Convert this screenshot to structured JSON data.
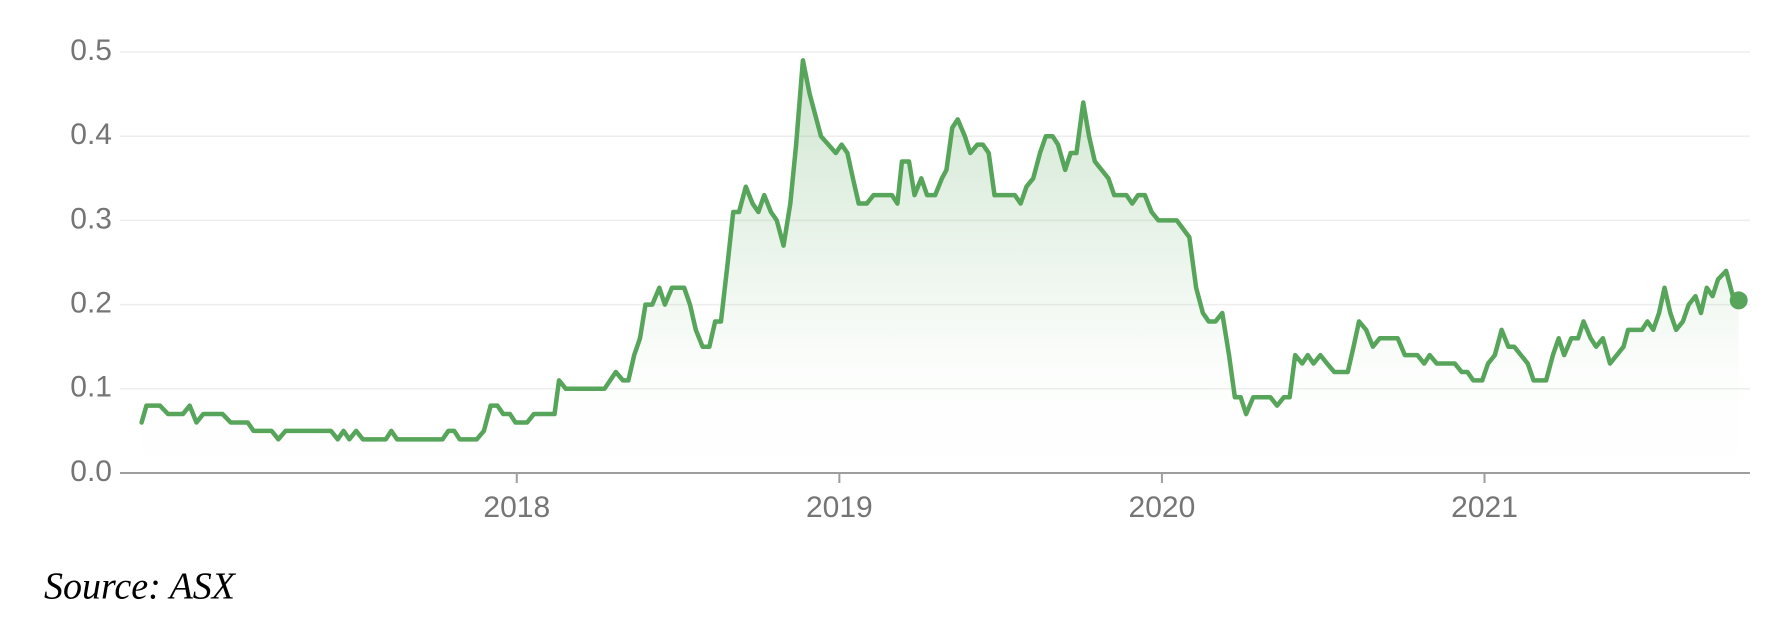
{
  "chart_data": {
    "type": "line",
    "source": "Source: ASX",
    "x": [
      2016.837,
      2016.852,
      2016.894,
      2016.919,
      2016.965,
      2016.986,
      2017.007,
      2017.028,
      2017.088,
      2017.113,
      2017.166,
      2017.184,
      2017.24,
      2017.261,
      2017.283,
      2017.424,
      2017.445,
      2017.463,
      2017.481,
      2017.502,
      2017.523,
      2017.594,
      2017.611,
      2017.629,
      2017.77,
      2017.788,
      2017.806,
      2017.823,
      2017.876,
      2017.898,
      2017.919,
      2017.94,
      2017.958,
      2017.979,
      2017.996,
      2018.032,
      2018.053,
      2018.117,
      2018.131,
      2018.152,
      2018.272,
      2018.307,
      2018.329,
      2018.346,
      2018.364,
      2018.382,
      2018.399,
      2018.42,
      2018.442,
      2018.459,
      2018.481,
      2018.519,
      2018.537,
      2018.555,
      2018.576,
      2018.597,
      2018.615,
      2018.633,
      2018.654,
      2018.671,
      2018.689,
      2018.71,
      2018.731,
      2018.749,
      2018.767,
      2018.788,
      2018.806,
      2018.827,
      2018.848,
      2018.866,
      2018.887,
      2018.908,
      2018.943,
      2018.989,
      2019.007,
      2019.025,
      2019.042,
      2019.06,
      2019.085,
      2019.106,
      2019.163,
      2019.18,
      2019.194,
      2019.216,
      2019.233,
      2019.254,
      2019.272,
      2019.297,
      2019.318,
      2019.332,
      2019.35,
      2019.367,
      2019.389,
      2019.406,
      2019.428,
      2019.445,
      2019.463,
      2019.481,
      2019.544,
      2019.562,
      2019.58,
      2019.601,
      2019.622,
      2019.64,
      2019.661,
      2019.678,
      2019.7,
      2019.717,
      2019.735,
      2019.756,
      2019.774,
      2019.792,
      2019.813,
      2019.834,
      2019.852,
      2019.89,
      2019.908,
      2019.926,
      2019.947,
      2019.968,
      2019.989,
      2020.046,
      2020.085,
      2020.106,
      2020.127,
      2020.145,
      2020.166,
      2020.187,
      2020.208,
      2020.226,
      2020.244,
      2020.261,
      2020.283,
      2020.336,
      2020.357,
      2020.378,
      2020.396,
      2020.413,
      2020.435,
      2020.452,
      2020.47,
      2020.491,
      2020.512,
      2020.534,
      2020.576,
      2020.594,
      2020.611,
      2020.633,
      2020.654,
      2020.675,
      2020.731,
      2020.753,
      2020.792,
      2020.813,
      2020.83,
      2020.852,
      2020.908,
      2020.929,
      2020.947,
      2020.965,
      2020.993,
      2021.011,
      2021.032,
      2021.053,
      2021.074,
      2021.092,
      2021.113,
      2021.134,
      2021.152,
      2021.191,
      2021.212,
      2021.23,
      2021.247,
      2021.269,
      2021.29,
      2021.307,
      2021.329,
      2021.346,
      2021.367,
      2021.389,
      2021.41,
      2021.431,
      2021.445,
      2021.488,
      2021.505,
      2021.523,
      2021.541,
      2021.558,
      2021.576,
      2021.594,
      2021.615,
      2021.633,
      2021.654,
      2021.671,
      2021.689,
      2021.707,
      2021.724,
      2021.749,
      2021.77,
      2021.788
    ],
    "values": [
      0.06,
      0.08,
      0.08,
      0.07,
      0.07,
      0.08,
      0.06,
      0.07,
      0.07,
      0.06,
      0.06,
      0.05,
      0.05,
      0.04,
      0.05,
      0.05,
      0.04,
      0.05,
      0.04,
      0.05,
      0.04,
      0.04,
      0.05,
      0.04,
      0.04,
      0.05,
      0.05,
      0.04,
      0.04,
      0.05,
      0.08,
      0.08,
      0.07,
      0.07,
      0.06,
      0.06,
      0.07,
      0.07,
      0.11,
      0.1,
      0.1,
      0.12,
      0.11,
      0.11,
      0.14,
      0.16,
      0.2,
      0.2,
      0.22,
      0.2,
      0.22,
      0.22,
      0.2,
      0.17,
      0.15,
      0.15,
      0.18,
      0.18,
      0.25,
      0.31,
      0.31,
      0.34,
      0.32,
      0.31,
      0.33,
      0.31,
      0.3,
      0.27,
      0.32,
      0.39,
      0.49,
      0.45,
      0.4,
      0.38,
      0.39,
      0.38,
      0.35,
      0.32,
      0.32,
      0.33,
      0.33,
      0.32,
      0.37,
      0.37,
      0.33,
      0.35,
      0.33,
      0.33,
      0.35,
      0.36,
      0.41,
      0.42,
      0.4,
      0.38,
      0.39,
      0.39,
      0.38,
      0.33,
      0.33,
      0.32,
      0.34,
      0.35,
      0.38,
      0.4,
      0.4,
      0.39,
      0.36,
      0.38,
      0.38,
      0.44,
      0.4,
      0.37,
      0.36,
      0.35,
      0.33,
      0.33,
      0.32,
      0.33,
      0.33,
      0.31,
      0.3,
      0.3,
      0.28,
      0.22,
      0.19,
      0.18,
      0.18,
      0.19,
      0.14,
      0.09,
      0.09,
      0.07,
      0.09,
      0.09,
      0.08,
      0.09,
      0.09,
      0.14,
      0.13,
      0.14,
      0.13,
      0.14,
      0.13,
      0.12,
      0.12,
      0.15,
      0.18,
      0.17,
      0.15,
      0.16,
      0.16,
      0.14,
      0.14,
      0.13,
      0.14,
      0.13,
      0.13,
      0.12,
      0.12,
      0.11,
      0.11,
      0.13,
      0.14,
      0.17,
      0.15,
      0.15,
      0.14,
      0.13,
      0.11,
      0.11,
      0.14,
      0.16,
      0.14,
      0.16,
      0.16,
      0.18,
      0.16,
      0.15,
      0.16,
      0.13,
      0.14,
      0.15,
      0.17,
      0.17,
      0.18,
      0.17,
      0.19,
      0.22,
      0.19,
      0.17,
      0.18,
      0.2,
      0.21,
      0.19,
      0.22,
      0.21,
      0.23,
      0.24,
      0.21,
      0.205
    ],
    "color": "#57a55a",
    "xlim": [
      2016.77,
      2021.823
    ],
    "xticks": [
      2018,
      2019,
      2020,
      2021
    ],
    "ylim": [
      0,
      0.5
    ],
    "yticks": [
      {
        "value": 0,
        "label": "0.0"
      },
      0.1,
      0.2,
      0.3,
      0.4,
      0.5
    ],
    "grid": true
  }
}
